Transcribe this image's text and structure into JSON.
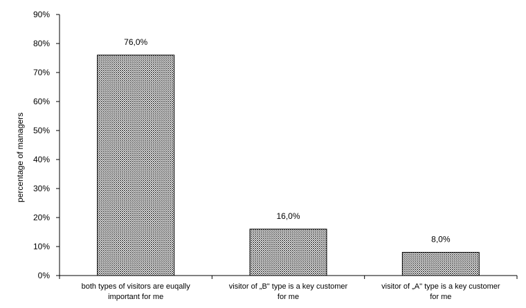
{
  "chart_data": {
    "type": "bar",
    "categories": [
      [
        "both types of visitors are euqally",
        "important for me"
      ],
      [
        "visitor of „B\" type is a key  customer",
        "for me"
      ],
      [
        "visitor of „A\" type is a key  customer",
        "for me"
      ]
    ],
    "values": [
      76.0,
      16.0,
      8.0
    ],
    "data_labels": [
      "76,0%",
      "16,0%",
      "8,0%"
    ],
    "ylabel": "percentage of managers",
    "xlabel": "",
    "ylim": [
      0,
      90
    ],
    "yticks": [
      {
        "value": 0,
        "label": "0%"
      },
      {
        "value": 10,
        "label": "10%"
      },
      {
        "value": 20,
        "label": "20%"
      },
      {
        "value": 30,
        "label": "30%"
      },
      {
        "value": 40,
        "label": "40%"
      },
      {
        "value": 50,
        "label": "50%"
      },
      {
        "value": 60,
        "label": "60%"
      },
      {
        "value": 70,
        "label": "70%"
      },
      {
        "value": 80,
        "label": "80%"
      },
      {
        "value": 90,
        "label": "90%"
      }
    ],
    "grid": false,
    "legend": "none",
    "bar_fill": "hatched dark gray",
    "colors": {
      "bar_dark": "#404040",
      "bar_light": "#ffffff",
      "axis": "#000000"
    }
  }
}
